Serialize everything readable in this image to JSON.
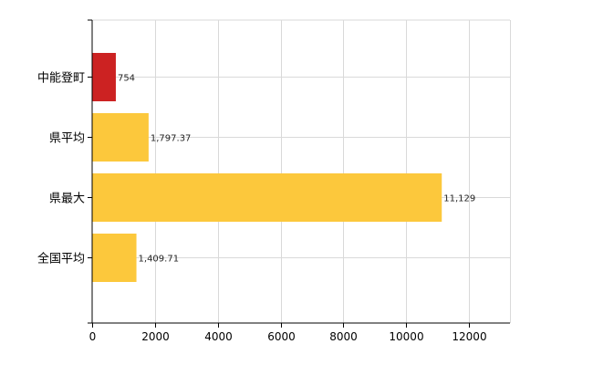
{
  "chart_data": {
    "type": "bar",
    "orientation": "horizontal",
    "categories": [
      "中能登町",
      "県平均",
      "県最大",
      "全国平均"
    ],
    "values": [
      754,
      1797.37,
      11129,
      1409.71
    ],
    "value_labels": [
      "754",
      "1,797.37",
      "11,129",
      "1,409.71"
    ],
    "bar_colors": [
      "#cc2222",
      "#fcc83c",
      "#fcc83c",
      "#fcc83c"
    ],
    "xlim": [
      0,
      13300
    ],
    "xticks": [
      0,
      2000,
      4000,
      6000,
      8000,
      10000,
      12000
    ],
    "xtick_labels": [
      "0",
      "2000",
      "4000",
      "6000",
      "8000",
      "10000",
      "12000"
    ],
    "title": "",
    "xlabel": "",
    "ylabel": "",
    "grid": true,
    "legend": "none"
  }
}
